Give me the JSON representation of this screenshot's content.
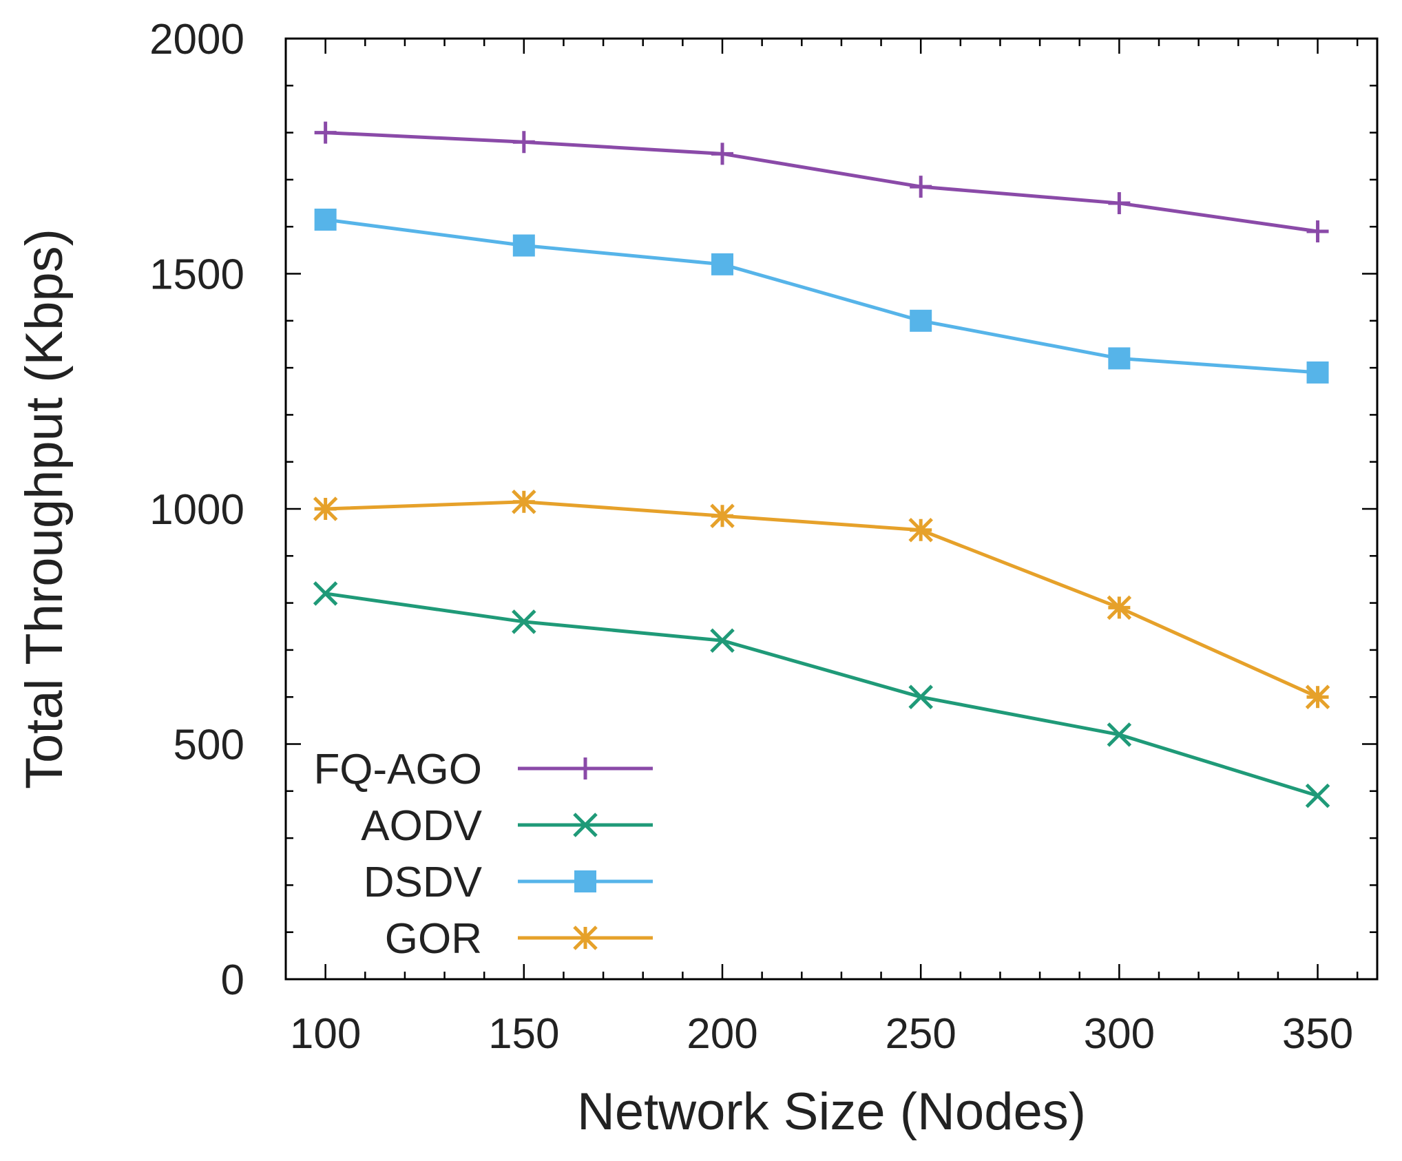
{
  "chart_data": {
    "type": "line",
    "title": "",
    "xlabel": "Network Size (Nodes)",
    "ylabel": "Total Throughput (Kbps)",
    "x": [
      100,
      150,
      200,
      250,
      300,
      350
    ],
    "xlim": [
      90,
      365
    ],
    "ylim": [
      0,
      2000
    ],
    "xticks": [
      "100",
      "150",
      "200",
      "250",
      "300",
      "350"
    ],
    "yticks": [
      "0",
      "500",
      "1000",
      "1500",
      "2000"
    ],
    "grid": false,
    "legend_position": "bottom-left",
    "series": [
      {
        "name": "FQ-AGO",
        "color": "#8a4aa8",
        "marker": "plus",
        "values": [
          1800,
          1780,
          1755,
          1685,
          1650,
          1590
        ]
      },
      {
        "name": "AODV",
        "color": "#1f9a78",
        "marker": "cross",
        "values": [
          820,
          760,
          720,
          600,
          520,
          390
        ]
      },
      {
        "name": "DSDV",
        "color": "#56b4e9",
        "marker": "square",
        "values": [
          1615,
          1560,
          1520,
          1400,
          1320,
          1290
        ]
      },
      {
        "name": "GOR",
        "color": "#e6a12a",
        "marker": "asterisk",
        "values": [
          1000,
          1015,
          985,
          955,
          790,
          600
        ]
      }
    ]
  }
}
